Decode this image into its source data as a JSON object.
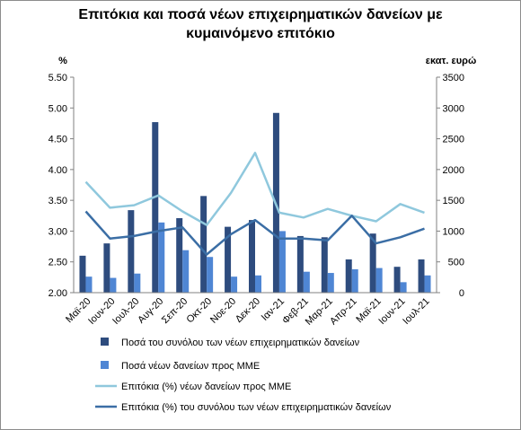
{
  "chart_data": {
    "type": "bar",
    "title_lines": [
      "Επιτόκια και ποσά νέων επιχειρηματικών δανείων με",
      "κυμαινόμενο επιτόκιο"
    ],
    "left_unit": "%",
    "right_unit": "εκατ. ευρώ",
    "left_axis": {
      "min": 2.0,
      "max": 5.5,
      "step": 0.5,
      "ticks": [
        "2.00",
        "2.50",
        "3.00",
        "3.50",
        "4.00",
        "4.50",
        "5.00",
        "5.50"
      ]
    },
    "right_axis": {
      "min": 0,
      "max": 3500,
      "step": 500,
      "ticks": [
        "0",
        "500",
        "1000",
        "1500",
        "2000",
        "2500",
        "3000",
        "3500"
      ]
    },
    "categories": [
      "Μαϊ-20",
      "Ιουν-20",
      "Ιουλ-20",
      "Αυγ-20",
      "Σεπ-20",
      "Οκτ-20",
      "Νοε-20",
      "Δεκ-20",
      "Ιαν-21",
      "Φεβ-21",
      "Μαρ-21",
      "Απρ-21",
      "Μαϊ-21",
      "Ιουν-21",
      "Ιουλ-21"
    ],
    "series": [
      {
        "name": "Ποσά του συνόλου των νέων επιχειρηματικών δανείων",
        "kind": "bar",
        "axis": "right",
        "color": "#2e4c7e",
        "values": [
          600,
          800,
          1340,
          2770,
          1210,
          1570,
          1070,
          1180,
          2920,
          920,
          900,
          540,
          960,
          420,
          540
        ]
      },
      {
        "name": "Ποσά νέων δανείων προς ΜΜΕ",
        "kind": "bar",
        "axis": "right",
        "color": "#4f86d4",
        "values": [
          260,
          240,
          310,
          1140,
          690,
          580,
          260,
          280,
          1000,
          340,
          320,
          380,
          400,
          170,
          280
        ]
      },
      {
        "name": "Επιτόκια (%) νέων δανείων προς ΜΜΕ",
        "kind": "line",
        "axis": "left",
        "color": "#8fc8dd",
        "values": [
          3.8,
          3.38,
          3.42,
          3.58,
          3.32,
          3.1,
          3.62,
          4.27,
          3.3,
          3.22,
          3.36,
          3.25,
          3.16,
          3.44,
          3.3
        ]
      },
      {
        "name": "Επιτόκια (%) του συνόλου των νέων επιχειρηματικών δανείων",
        "kind": "line",
        "axis": "left",
        "color": "#3b6ea5",
        "values": [
          3.32,
          2.88,
          2.92,
          3.0,
          3.06,
          2.62,
          2.95,
          3.18,
          2.88,
          2.88,
          2.85,
          3.25,
          2.8,
          2.9,
          3.04
        ]
      }
    ],
    "grid": false,
    "legend_position": "bottom"
  }
}
